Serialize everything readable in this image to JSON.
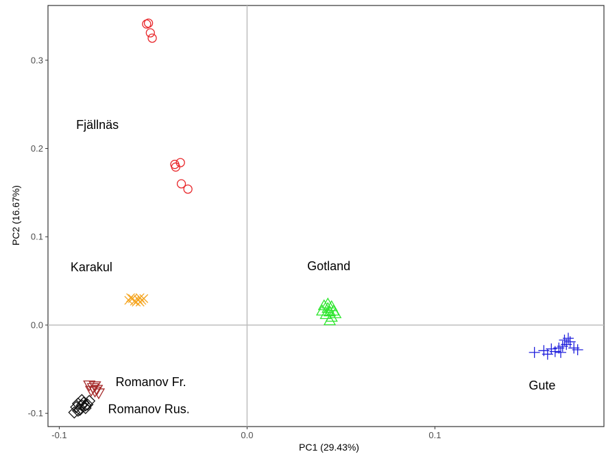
{
  "chart_data": {
    "type": "scatter",
    "xlabel": "PC1 (29.43%)",
    "ylabel": "PC2 (16.67%)",
    "xlim": [
      -0.106,
      0.19
    ],
    "ylim": [
      -0.115,
      0.362
    ],
    "x_ticks": [
      -0.1,
      0.0,
      0.1
    ],
    "y_ticks": [
      -0.1,
      0.0,
      0.1,
      0.2,
      0.3
    ],
    "x_tick_labels": [
      "-0.1",
      "0.0",
      "0.1"
    ],
    "y_tick_labels": [
      "-0.1",
      "0.0",
      "0.1",
      "0.2",
      "0.3"
    ],
    "grid": false,
    "reference_lines": {
      "x": 0.0,
      "y": 0.0
    },
    "series": [
      {
        "label": "Fjällnäs",
        "marker": "circle",
        "color": "#e8262a",
        "label_pos": [
          -0.091,
          0.222
        ],
        "points": [
          [
            -0.0535,
            0.341
          ],
          [
            -0.0525,
            0.342
          ],
          [
            -0.0515,
            0.331
          ],
          [
            -0.0505,
            0.325
          ],
          [
            -0.0385,
            0.182
          ],
          [
            -0.038,
            0.179
          ],
          [
            -0.0355,
            0.184
          ],
          [
            -0.035,
            0.16
          ],
          [
            -0.0315,
            0.154
          ]
        ]
      },
      {
        "label": "Karakul",
        "marker": "x",
        "color": "#f5a623",
        "label_pos": [
          -0.094,
          0.061
        ],
        "points": [
          [
            -0.063,
            0.028
          ],
          [
            -0.061,
            0.03
          ],
          [
            -0.06,
            0.027
          ],
          [
            -0.058,
            0.029
          ],
          [
            -0.057,
            0.031
          ],
          [
            -0.059,
            0.026
          ],
          [
            -0.056,
            0.028
          ],
          [
            -0.055,
            0.03
          ],
          [
            -0.062,
            0.031
          ],
          [
            -0.057,
            0.026
          ]
        ]
      },
      {
        "label": "Gotland",
        "marker": "triangle-up",
        "color": "#2ee62e",
        "label_pos": [
          0.032,
          0.062
        ],
        "points": [
          [
            0.04,
            0.016
          ],
          [
            0.041,
            0.022
          ],
          [
            0.042,
            0.012
          ],
          [
            0.043,
            0.019
          ],
          [
            0.044,
            0.015
          ],
          [
            0.045,
            0.009
          ],
          [
            0.045,
            0.021
          ],
          [
            0.046,
            0.016
          ],
          [
            0.047,
            0.013
          ],
          [
            0.043,
            0.024
          ],
          [
            0.044,
            0.005
          ]
        ]
      },
      {
        "label": "Gute",
        "marker": "plus",
        "color": "#1e1edc",
        "label_pos": [
          0.15,
          -0.073
        ],
        "points": [
          [
            0.153,
            -0.031
          ],
          [
            0.158,
            -0.029
          ],
          [
            0.16,
            -0.033
          ],
          [
            0.162,
            -0.027
          ],
          [
            0.164,
            -0.03
          ],
          [
            0.166,
            -0.026
          ],
          [
            0.168,
            -0.024
          ],
          [
            0.169,
            -0.017
          ],
          [
            0.17,
            -0.022
          ],
          [
            0.172,
            -0.019
          ],
          [
            0.174,
            -0.026
          ],
          [
            0.176,
            -0.028
          ],
          [
            0.167,
            -0.031
          ],
          [
            0.171,
            -0.015
          ]
        ]
      },
      {
        "label": "Romanov Fr.",
        "marker": "triangle-down",
        "color": "#a52a2a",
        "label_pos": [
          -0.07,
          -0.069
        ],
        "points": [
          [
            -0.084,
            -0.068
          ],
          [
            -0.082,
            -0.071
          ],
          [
            -0.081,
            -0.075
          ],
          [
            -0.08,
            -0.073
          ],
          [
            -0.079,
            -0.077
          ],
          [
            -0.083,
            -0.074
          ],
          [
            -0.081,
            -0.069
          ]
        ]
      },
      {
        "label": "Romanov Rus.",
        "marker": "diamond",
        "color": "#111111",
        "label_pos": [
          -0.074,
          -0.1
        ],
        "points": [
          [
            -0.091,
            -0.093
          ],
          [
            -0.09,
            -0.089
          ],
          [
            -0.089,
            -0.096
          ],
          [
            -0.088,
            -0.091
          ],
          [
            -0.087,
            -0.088
          ],
          [
            -0.086,
            -0.094
          ],
          [
            -0.085,
            -0.09
          ],
          [
            -0.084,
            -0.086
          ],
          [
            -0.092,
            -0.099
          ],
          [
            -0.088,
            -0.085
          ],
          [
            -0.086,
            -0.091
          ],
          [
            -0.09,
            -0.097
          ]
        ]
      }
    ]
  }
}
